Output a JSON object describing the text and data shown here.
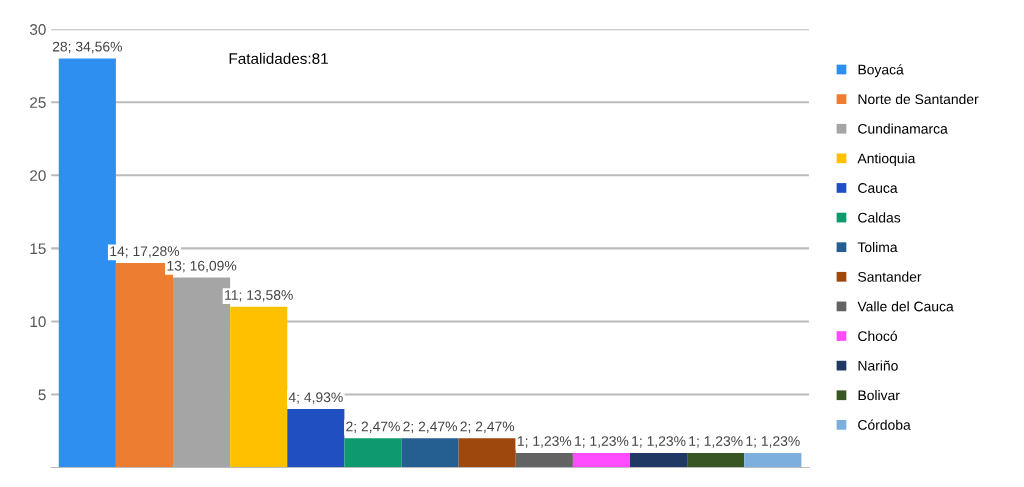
{
  "chart_data": {
    "type": "bar",
    "categories": [
      null
    ],
    "series": [
      {
        "name": "Boyacá",
        "color": "#2e8ff0",
        "values": [
          28
        ],
        "value_labels": [
          "28; 34,56%"
        ]
      },
      {
        "name": "Norte de Santander",
        "color": "#ed7d31",
        "values": [
          14
        ],
        "value_labels": [
          "14; 17,28%"
        ]
      },
      {
        "name": "Cundinamarca",
        "color": "#a5a5a5",
        "values": [
          13
        ],
        "value_labels": [
          "13; 16,09%"
        ]
      },
      {
        "name": "Antioquia",
        "color": "#ffc000",
        "values": [
          11
        ],
        "value_labels": [
          "11; 13,58%"
        ]
      },
      {
        "name": "Cauca",
        "color": "#1f4fc0",
        "values": [
          4
        ],
        "value_labels": [
          "4; 4,93%"
        ]
      },
      {
        "name": "Caldas",
        "color": "#0e9a6e",
        "values": [
          2
        ],
        "value_labels": [
          "2; 2,47%"
        ]
      },
      {
        "name": "Tolima",
        "color": "#255e91",
        "values": [
          2
        ],
        "value_labels": [
          "2; 2,47%"
        ]
      },
      {
        "name": "Santander",
        "color": "#9e480e",
        "values": [
          2
        ],
        "value_labels": [
          "2; 2,47%"
        ]
      },
      {
        "name": "Valle del Cauca",
        "color": "#636363",
        "values": [
          1
        ],
        "value_labels": [
          "1; 1,23%"
        ]
      },
      {
        "name": "Chocó",
        "color": "#ff4cff",
        "values": [
          1
        ],
        "value_labels": [
          "1; 1,23%"
        ]
      },
      {
        "name": "Nariño",
        "color": "#203864",
        "values": [
          1
        ],
        "value_labels": [
          "1; 1,23%"
        ]
      },
      {
        "name": "Bolivar",
        "color": "#375623",
        "values": [
          1
        ],
        "value_labels": [
          "1; 1,23%"
        ]
      },
      {
        "name": "Córdoba",
        "color": "#7cafdd",
        "values": [
          1
        ],
        "value_labels": [
          "1; 1,23%"
        ]
      }
    ],
    "annotations": [
      "Fatalidades:81"
    ],
    "ylim": [
      0,
      30
    ],
    "yticks": [
      5,
      10,
      15,
      20,
      25,
      30
    ],
    "tick_labels": "y",
    "grid": "y",
    "legend": "right"
  }
}
